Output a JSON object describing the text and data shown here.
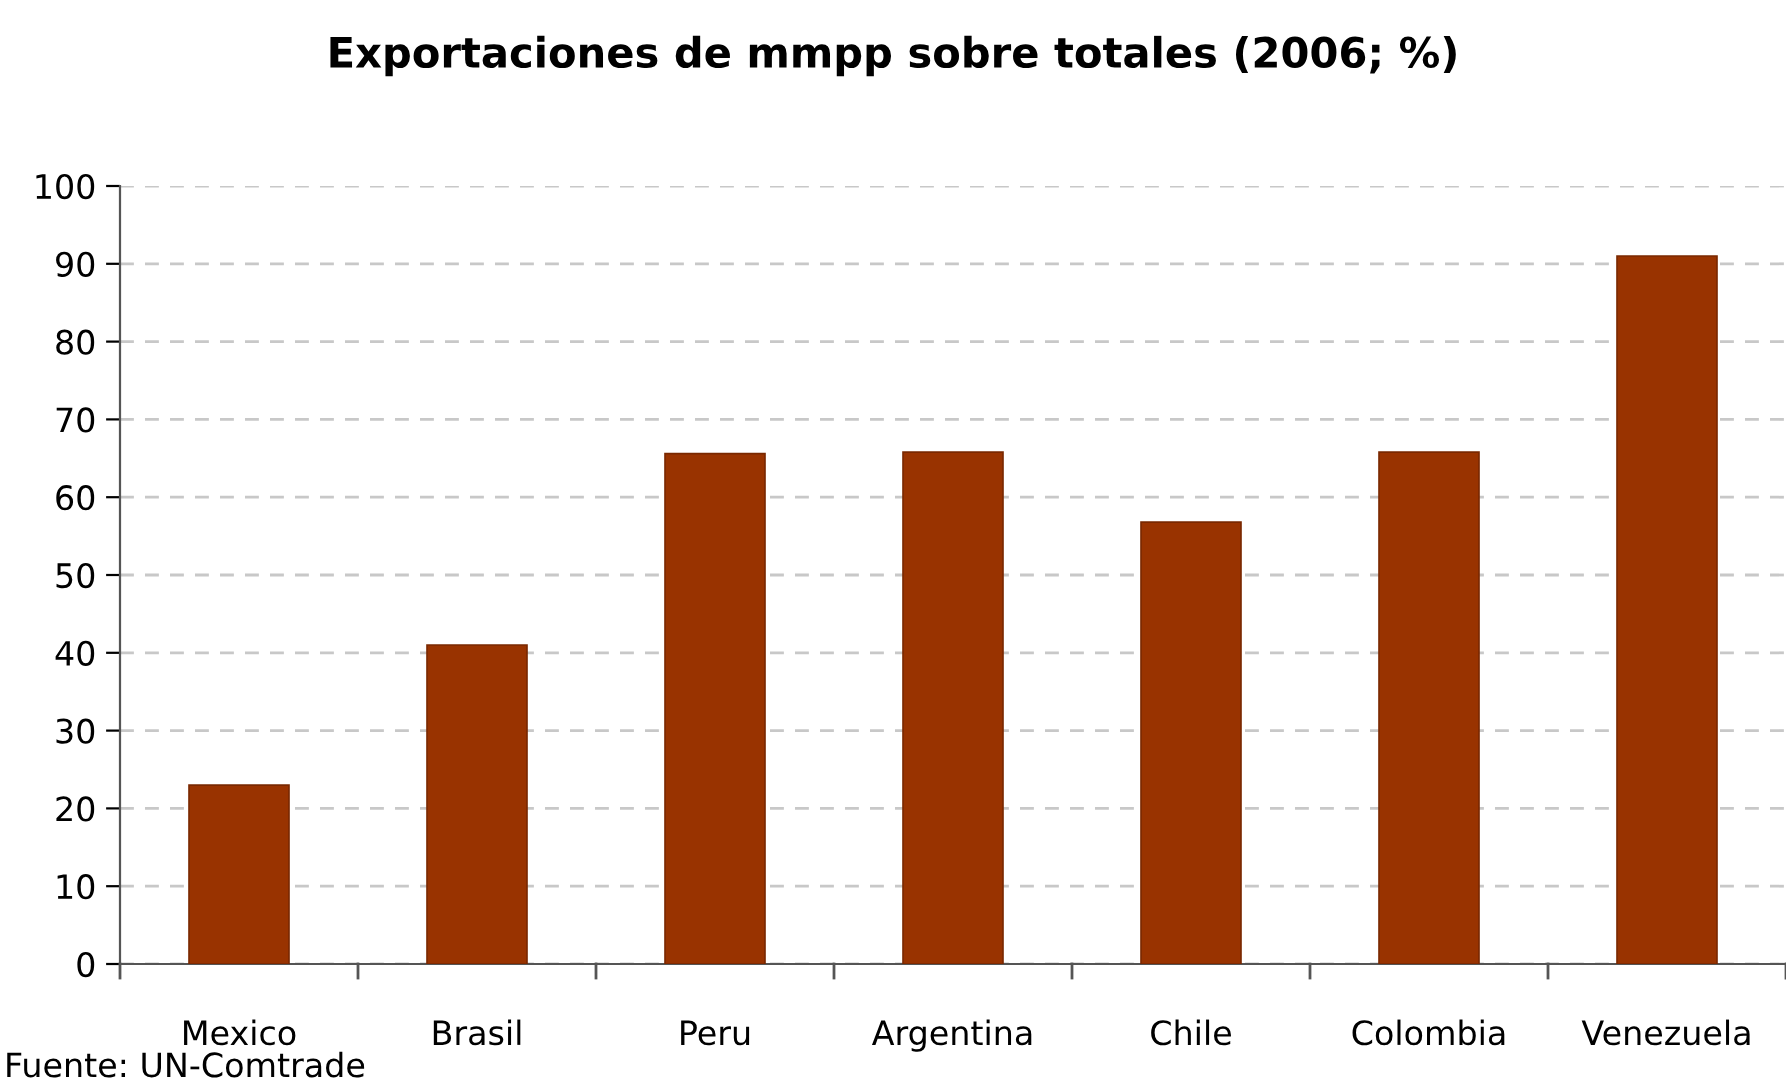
{
  "chart_data": {
    "type": "bar",
    "title": "Exportaciones de mmpp sobre totales (2006; %)",
    "categories": [
      "Mexico",
      "Brasil",
      "Peru",
      "Argentina",
      "Chile",
      "Colombia",
      "Venezuela"
    ],
    "values": [
      23,
      41,
      65.6,
      65.8,
      56.8,
      65.8,
      91
    ],
    "color": "#993300",
    "ylim": [
      0,
      100
    ],
    "yticks": [
      0,
      10,
      20,
      30,
      40,
      50,
      60,
      70,
      80,
      90,
      100
    ],
    "grid": "y",
    "annotations": [
      "Fuente: UN-Comtrade"
    ]
  }
}
